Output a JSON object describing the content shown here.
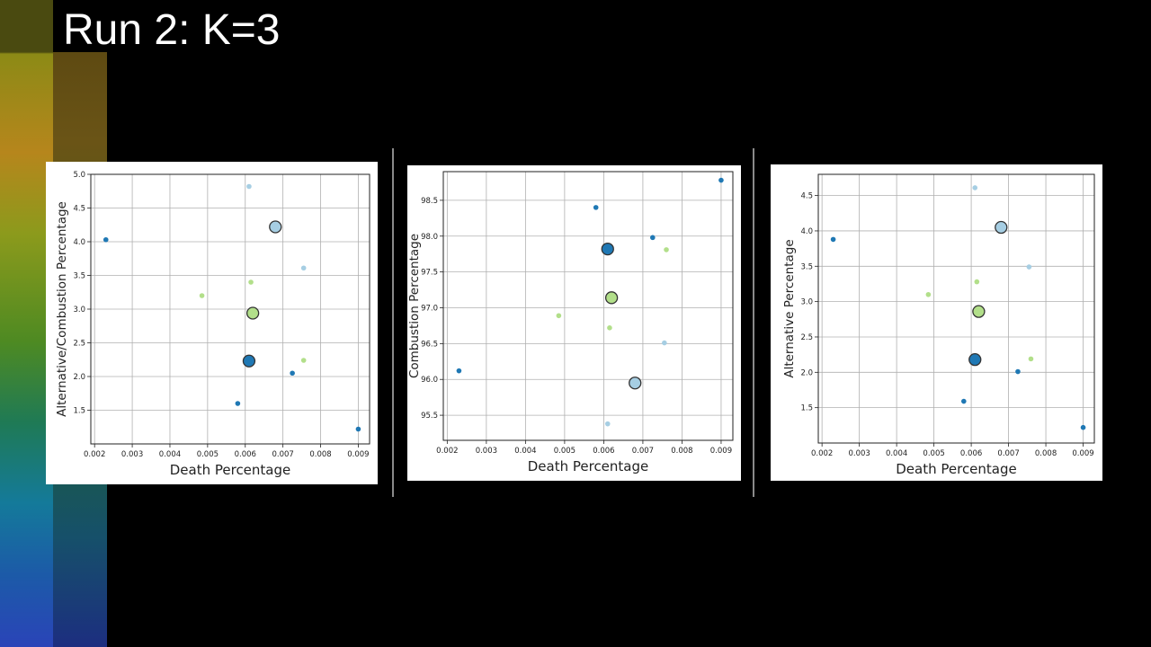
{
  "slide": {
    "title": "Run 2: K=3"
  },
  "colors": {
    "light_blue": "#a6cee3",
    "dark_blue": "#1f78b4",
    "light_green": "#b2df8a",
    "edge": "#333333",
    "grid": "#b0b0b0"
  },
  "chart_data": [
    {
      "type": "scatter",
      "xlabel": "Death Percentage",
      "ylabel": "Alternative/Combustion Percentage",
      "xlim": [
        0.0019,
        0.0093
      ],
      "ylim": [
        1.0,
        5.0
      ],
      "xticks": [
        "0.002",
        "0.003",
        "0.004",
        "0.005",
        "0.006",
        "0.007",
        "0.008",
        "0.009"
      ],
      "yticks": [
        "1.5",
        "2.0",
        "2.5",
        "3.0",
        "3.5",
        "4.0",
        "4.5",
        "5.0"
      ],
      "grid": true,
      "series": [
        {
          "color": "dark_blue",
          "points": [
            [
              0.0023,
              4.03
            ],
            [
              0.0058,
              1.6
            ],
            [
              0.00725,
              2.05
            ],
            [
              0.009,
              1.22
            ]
          ]
        },
        {
          "color": "light_blue",
          "points": [
            [
              0.0061,
              4.82
            ],
            [
              0.00755,
              3.61
            ]
          ]
        },
        {
          "color": "light_green",
          "points": [
            [
              0.00485,
              3.2
            ],
            [
              0.00615,
              3.4
            ],
            [
              0.00755,
              2.24
            ]
          ]
        }
      ],
      "centroids": [
        {
          "color": "light_blue",
          "x": 0.0068,
          "y": 4.22
        },
        {
          "color": "light_green",
          "x": 0.0062,
          "y": 2.94
        },
        {
          "color": "dark_blue",
          "x": 0.0061,
          "y": 2.23
        }
      ]
    },
    {
      "type": "scatter",
      "xlabel": "Death Percentage",
      "ylabel": "Combustion Percentage",
      "xlim": [
        0.0019,
        0.0093
      ],
      "ylim": [
        95.15,
        98.9
      ],
      "xticks": [
        "0.002",
        "0.003",
        "0.004",
        "0.005",
        "0.006",
        "0.007",
        "0.008",
        "0.009"
      ],
      "yticks": [
        "95.5",
        "96.0",
        "96.5",
        "97.0",
        "97.5",
        "98.0",
        "98.5"
      ],
      "grid": true,
      "series": [
        {
          "color": "dark_blue",
          "points": [
            [
              0.0023,
              96.12
            ],
            [
              0.0058,
              98.4
            ],
            [
              0.00725,
              97.98
            ],
            [
              0.009,
              98.78
            ]
          ]
        },
        {
          "color": "light_blue",
          "points": [
            [
              0.0061,
              95.38
            ],
            [
              0.00755,
              96.51
            ]
          ]
        },
        {
          "color": "light_green",
          "points": [
            [
              0.00485,
              96.89
            ],
            [
              0.00615,
              96.72
            ],
            [
              0.0076,
              97.81
            ]
          ]
        }
      ],
      "centroids": [
        {
          "color": "dark_blue",
          "x": 0.0061,
          "y": 97.82
        },
        {
          "color": "light_green",
          "x": 0.0062,
          "y": 97.14
        },
        {
          "color": "light_blue",
          "x": 0.0068,
          "y": 95.95
        }
      ]
    },
    {
      "type": "scatter",
      "xlabel": "Death Percentage",
      "ylabel": "Alternative Percentage",
      "xlim": [
        0.0019,
        0.0093
      ],
      "ylim": [
        1.0,
        4.8
      ],
      "xticks": [
        "0.002",
        "0.003",
        "0.004",
        "0.005",
        "0.006",
        "0.007",
        "0.008",
        "0.009"
      ],
      "yticks": [
        "1.5",
        "2.0",
        "2.5",
        "3.0",
        "3.5",
        "4.0",
        "4.5"
      ],
      "grid": true,
      "series": [
        {
          "color": "dark_blue",
          "points": [
            [
              0.0023,
              3.88
            ],
            [
              0.0058,
              1.59
            ],
            [
              0.00725,
              2.01
            ],
            [
              0.009,
              1.22
            ]
          ]
        },
        {
          "color": "light_blue",
          "points": [
            [
              0.0061,
              4.61
            ],
            [
              0.00755,
              3.49
            ]
          ]
        },
        {
          "color": "light_green",
          "points": [
            [
              0.00485,
              3.1
            ],
            [
              0.00615,
              3.28
            ],
            [
              0.0076,
              2.19
            ]
          ]
        }
      ],
      "centroids": [
        {
          "color": "light_blue",
          "x": 0.0068,
          "y": 4.05
        },
        {
          "color": "light_green",
          "x": 0.0062,
          "y": 2.86
        },
        {
          "color": "dark_blue",
          "x": 0.0061,
          "y": 2.18
        }
      ]
    }
  ]
}
